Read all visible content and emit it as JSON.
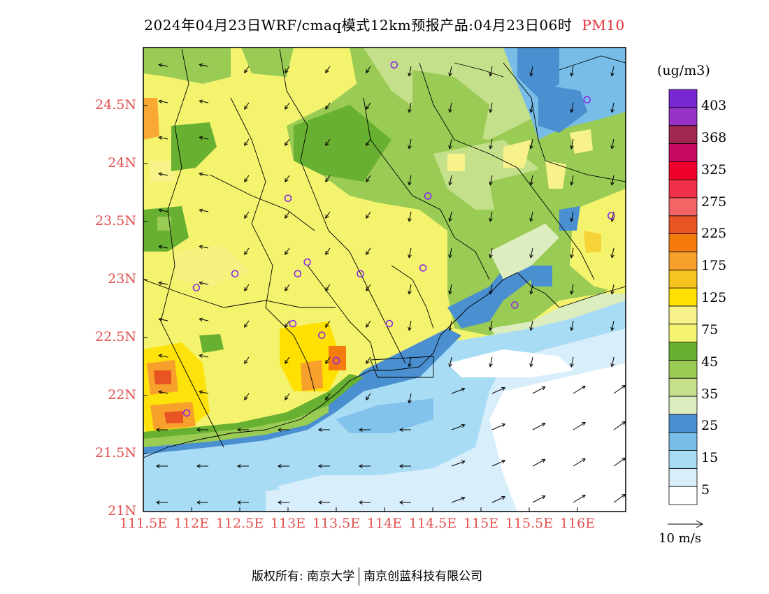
{
  "title": {
    "text": "2024年04月23日WRF/cmaq模式12km预报产品:04月23日06时",
    "variable": "PM10"
  },
  "map": {
    "lat_ticks": [
      "24.5N",
      "24N",
      "23.5N",
      "23N",
      "22.5N",
      "22N",
      "21.5N",
      "21N"
    ],
    "lon_ticks": [
      "111.5E",
      "112E",
      "112.5E",
      "113E",
      "113.5E",
      "114E",
      "114.5E",
      "115E",
      "115.5E",
      "116E"
    ],
    "lat_range": [
      21.0,
      25.0
    ],
    "lon_range": [
      111.5,
      116.5
    ],
    "stations": [
      {
        "lon": 114.1,
        "lat": 24.85
      },
      {
        "lon": 116.1,
        "lat": 24.55
      },
      {
        "lon": 113.0,
        "lat": 23.7
      },
      {
        "lon": 114.45,
        "lat": 23.72
      },
      {
        "lon": 116.35,
        "lat": 23.55
      },
      {
        "lon": 113.2,
        "lat": 23.15
      },
      {
        "lon": 112.45,
        "lat": 23.05
      },
      {
        "lon": 113.1,
        "lat": 23.05
      },
      {
        "lon": 113.75,
        "lat": 23.05
      },
      {
        "lon": 114.4,
        "lat": 23.1
      },
      {
        "lon": 112.05,
        "lat": 22.93
      },
      {
        "lon": 115.35,
        "lat": 22.78
      },
      {
        "lon": 113.05,
        "lat": 22.62
      },
      {
        "lon": 113.35,
        "lat": 22.52
      },
      {
        "lon": 113.5,
        "lat": 22.3
      },
      {
        "lon": 114.05,
        "lat": 22.62
      },
      {
        "lon": 111.95,
        "lat": 21.85
      }
    ],
    "station_color": "#8a2be2"
  },
  "legend": {
    "unit": "(ug/m3)",
    "labels": [
      "403",
      "368",
      "325",
      "275",
      "225",
      "175",
      "125",
      "75",
      "45",
      "35",
      "25",
      "15",
      "5"
    ],
    "colors": [
      "#ffffff",
      "#d8eefa",
      "#a8dcf5",
      "#78bde8",
      "#4a8fcf",
      "#dcedc0",
      "#c5e08a",
      "#9acb55",
      "#68b032",
      "#f3f36e",
      "#f7f28a",
      "#ffe000",
      "#f6c41e",
      "#f8a02c",
      "#f57c0c",
      "#e85424",
      "#f46464",
      "#f0304a",
      "#f0002a",
      "#c80a64",
      "#a02850",
      "#9632c8",
      "#7828d2"
    ]
  },
  "wind_scale": {
    "label": "10 m/s"
  },
  "footer": {
    "copyright": "版权所有: 南京大学",
    "company": "南京创蓝科技有限公司"
  }
}
